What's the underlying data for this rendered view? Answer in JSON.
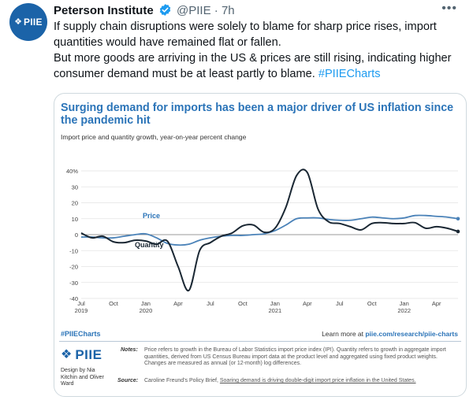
{
  "tweet": {
    "author": "Peterson Institute",
    "handle": "@PIIE",
    "separator": "·",
    "time": "7h",
    "avatar_label": "PIIE",
    "more_label": "•••",
    "text_line1": "If supply chain disruptions were solely to blame for sharp price rises, import quantities would have remained flat or fallen.",
    "text_line2": "But more goods are arriving in the US & prices are still rising, indicating higher consumer demand must be at least partly to blame.",
    "hashtag": "#PIIECharts",
    "icons": {
      "avatar_mark": "piie-logo-icon",
      "verified": "verified-badge-icon",
      "more": "more-options-icon"
    },
    "colors": {
      "link": "#1d9bf0",
      "verified": "#1d9bf0",
      "brand": "#1b63a8"
    }
  },
  "card": {
    "title": "Surging demand for imports has been a major driver of US inflation since the pandemic hit",
    "subtitle": "Import price and quantity growth, year-on-year percent change",
    "hashtag": "#PIIECharts",
    "learn_more_prefix": "Learn more at ",
    "learn_more_link": "piie.com/research/piie-charts",
    "logo": "PIIE",
    "designer": "Design by Nia Kitchin and Oliver Ward",
    "notes_label": "Notes:",
    "notes": "Price refers to growth in the Bureau of Labor Statistics import price index (IPI). Quantity refers to growth in aggregate import quantities, derived from US Census Bureau import data at the product level and aggregated using fixed product weights. Changes are measured as annual (or 12-month) log differences.",
    "source_label": "Source:",
    "source_prefix": "Caroline Freund's Policy Brief, ",
    "source_link": "Soaring demand is driving double-digit import price inflation in the United States."
  },
  "chart_data": {
    "type": "line",
    "x": [
      "2019-07",
      "2019-08",
      "2019-09",
      "2019-10",
      "2019-11",
      "2019-12",
      "2020-01",
      "2020-02",
      "2020-03",
      "2020-04",
      "2020-05",
      "2020-06",
      "2020-07",
      "2020-08",
      "2020-09",
      "2020-10",
      "2020-11",
      "2020-12",
      "2021-01",
      "2021-02",
      "2021-03",
      "2021-04",
      "2021-05",
      "2021-06",
      "2021-07",
      "2021-08",
      "2021-09",
      "2021-10",
      "2021-11",
      "2021-12",
      "2022-01",
      "2022-02",
      "2022-03",
      "2022-04",
      "2022-05",
      "2022-06"
    ],
    "x_ticks": [
      {
        "label": "Jul",
        "year": "2019",
        "index": 0
      },
      {
        "label": "Oct",
        "year": "",
        "index": 3
      },
      {
        "label": "Jan",
        "year": "2020",
        "index": 6
      },
      {
        "label": "Apr",
        "year": "",
        "index": 9
      },
      {
        "label": "Jul",
        "year": "",
        "index": 12
      },
      {
        "label": "Oct",
        "year": "",
        "index": 15
      },
      {
        "label": "Jan",
        "year": "2021",
        "index": 18
      },
      {
        "label": "Apr",
        "year": "",
        "index": 21
      },
      {
        "label": "Jul",
        "year": "",
        "index": 24
      },
      {
        "label": "Oct",
        "year": "",
        "index": 27
      },
      {
        "label": "Jan",
        "year": "2022",
        "index": 30
      },
      {
        "label": "Apr",
        "year": "",
        "index": 33
      }
    ],
    "y_ticks": [
      "40%",
      "30",
      "20",
      "10",
      "0",
      "-10",
      "-20",
      "-30",
      "-40"
    ],
    "y_tick_values": [
      40,
      30,
      20,
      10,
      0,
      -10,
      -20,
      -30,
      -40
    ],
    "ylim": [
      -40,
      40
    ],
    "series": [
      {
        "name": "Price",
        "color": "#4a82b8",
        "values": [
          -1.5,
          -1.5,
          -2,
          -2,
          -1,
          0,
          0.5,
          -2,
          -5.5,
          -6.5,
          -6,
          -3.5,
          -2,
          -1,
          -0.5,
          -0.5,
          0,
          0.5,
          2.5,
          6,
          10,
          10.5,
          10.5,
          9.5,
          9,
          9,
          10,
          11,
          10.5,
          10,
          10.5,
          12,
          12,
          11.5,
          11,
          10
        ]
      },
      {
        "name": "Quantity",
        "color": "#1a2733",
        "values": [
          1,
          -2,
          -1,
          -4.5,
          -5,
          -3.5,
          -4,
          -6,
          -4,
          -20,
          -35,
          -10,
          -5,
          -1,
          1,
          5.5,
          6,
          1.5,
          4,
          17,
          37,
          39,
          16,
          8,
          7,
          5,
          3,
          7,
          7.5,
          7,
          7,
          7.5,
          4,
          5,
          4,
          2
        ]
      }
    ],
    "annotations": [
      "Price",
      "Quantity"
    ],
    "grid": "horizontal",
    "legend": "inline labels"
  }
}
